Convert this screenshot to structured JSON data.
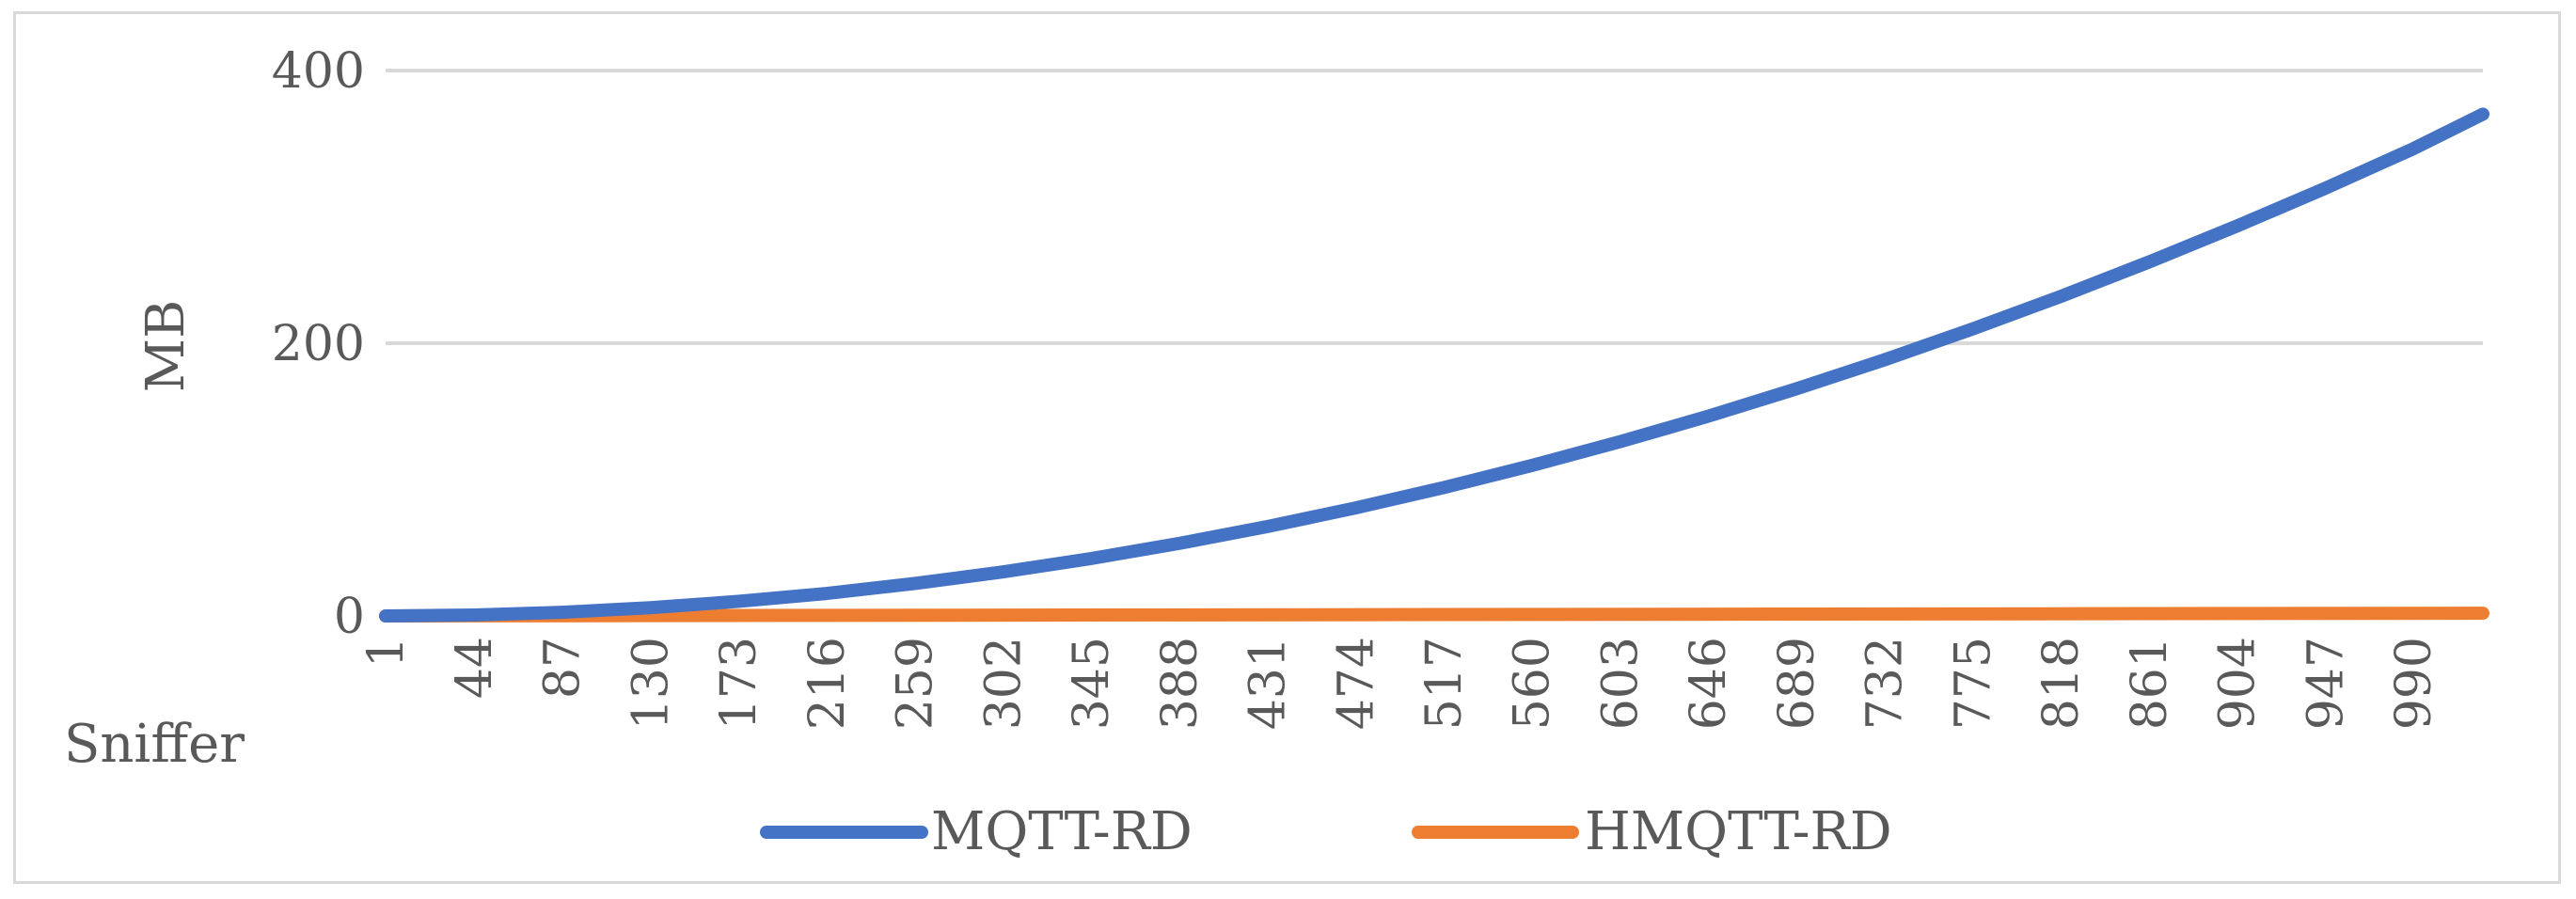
{
  "chart_data": {
    "type": "line",
    "title": "",
    "ylabel": "MB",
    "xlabel": "Sniffer",
    "ylim": [
      0,
      400
    ],
    "y_ticks": [
      0,
      200,
      400
    ],
    "x_tick_labels": [
      "1",
      "44",
      "87",
      "130",
      "173",
      "216",
      "259",
      "302",
      "345",
      "388",
      "431",
      "474",
      "517",
      "560",
      "603",
      "646",
      "689",
      "732",
      "775",
      "818",
      "861",
      "904",
      "947",
      "990"
    ],
    "x_range": [
      1,
      1024
    ],
    "grid": "horizontal",
    "legend_position": "bottom",
    "series": [
      {
        "name": "MQTT-RD",
        "color": "#4472c4",
        "x": [
          1,
          44,
          87,
          130,
          173,
          216,
          259,
          302,
          345,
          388,
          431,
          474,
          517,
          560,
          603,
          646,
          689,
          732,
          775,
          818,
          861,
          904,
          947,
          990,
          1024
        ],
        "values": [
          0,
          0.7,
          2.7,
          6.0,
          10.7,
          16.5,
          23.8,
          32.3,
          42.1,
          53.2,
          65.5,
          79.2,
          94.1,
          110.3,
          127.7,
          146.4,
          166.5,
          187.8,
          210.4,
          234.3,
          259.5,
          285.9,
          313.6,
          342.6,
          368
        ]
      },
      {
        "name": "HMQTT-RD",
        "color": "#ed7d31",
        "x": [
          1,
          1024
        ],
        "values": [
          0,
          2
        ]
      }
    ]
  }
}
